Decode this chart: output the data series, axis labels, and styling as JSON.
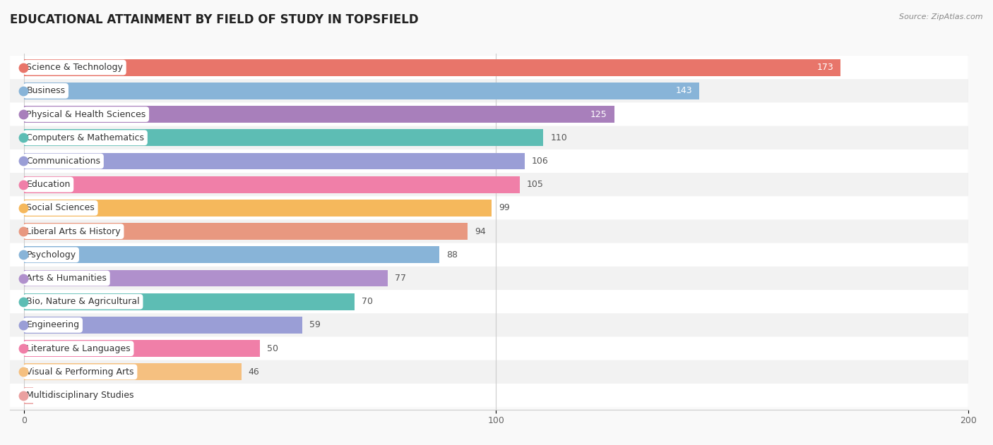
{
  "categories": [
    "Science & Technology",
    "Business",
    "Physical & Health Sciences",
    "Computers & Mathematics",
    "Communications",
    "Education",
    "Social Sciences",
    "Liberal Arts & History",
    "Psychology",
    "Arts & Humanities",
    "Bio, Nature & Agricultural",
    "Engineering",
    "Literature & Languages",
    "Visual & Performing Arts",
    "Multidisciplinary Studies"
  ],
  "values": [
    173,
    143,
    125,
    110,
    106,
    105,
    99,
    94,
    88,
    77,
    70,
    59,
    50,
    46,
    0
  ],
  "bar_colors": [
    "#E8756A",
    "#88B4D8",
    "#A87FBB",
    "#5DBDB4",
    "#9A9ED6",
    "#F07FA8",
    "#F5B85C",
    "#E89880",
    "#88B4D8",
    "#B090CC",
    "#5DBDB4",
    "#9A9ED6",
    "#F07FA8",
    "#F5C080",
    "#EAA0A0"
  ],
  "row_colors": [
    "#ffffff",
    "#f2f2f2"
  ],
  "title": "EDUCATIONAL ATTAINMENT BY FIELD OF STUDY IN TOPSFIELD",
  "source": "Source: ZipAtlas.com",
  "xlim": [
    -3,
    200
  ],
  "xticks": [
    0,
    100,
    200
  ],
  "title_fontsize": 12,
  "label_fontsize": 9,
  "value_fontsize": 9
}
